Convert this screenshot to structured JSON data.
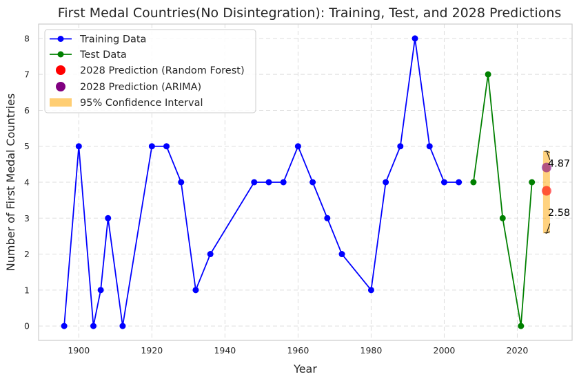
{
  "chart_data": {
    "type": "line",
    "title": "First Medal Countries(No Disintegration): Training, Test, and 2028 Predictions",
    "xlabel": "Year",
    "ylabel": "Number of First Medal Countries",
    "xlim": [
      1889,
      2035
    ],
    "ylim": [
      -0.4,
      8.4
    ],
    "xticks": [
      1900,
      1920,
      1940,
      1960,
      1980,
      2000,
      2020
    ],
    "yticks": [
      0,
      1,
      2,
      3,
      4,
      5,
      6,
      7,
      8
    ],
    "grid": true,
    "legend_position": "top-left",
    "series": [
      {
        "name": "Training Data",
        "kind": "line",
        "color": "#0000ff",
        "x": [
          1896,
          1900,
          1904,
          1906,
          1908,
          1912,
          1920,
          1924,
          1928,
          1932,
          1936,
          1948,
          1952,
          1956,
          1960,
          1964,
          1968,
          1972,
          1980,
          1984,
          1988,
          1992,
          1996,
          2000,
          2004
        ],
        "y": [
          0,
          5,
          0,
          1,
          3,
          0,
          5,
          5,
          4,
          1,
          2,
          4,
          4,
          4,
          5,
          4,
          3,
          2,
          1,
          4,
          5,
          8,
          5,
          4,
          4
        ]
      },
      {
        "name": "Test Data",
        "kind": "line",
        "color": "#008000",
        "x": [
          2008,
          2012,
          2016,
          2021,
          2024
        ],
        "y": [
          4,
          7,
          3,
          0,
          4
        ]
      },
      {
        "name": "2028 Prediction (Random Forest)",
        "kind": "point",
        "color": "#ff0000",
        "x": [
          2028
        ],
        "y": [
          3.76
        ]
      },
      {
        "name": "2028 Prediction (ARIMA)",
        "kind": "point",
        "color": "#800080",
        "x": [
          2028
        ],
        "y": [
          4.41
        ]
      },
      {
        "name": "95% Confidence Interval",
        "kind": "interval",
        "color": "#ffa500",
        "x": 2028,
        "low": 2.58,
        "high": 4.87
      }
    ],
    "annotations": [
      {
        "text": "4.87",
        "x": 2028,
        "y": 4.87
      },
      {
        "text": "2.58",
        "x": 2028,
        "y": 2.58
      }
    ]
  }
}
